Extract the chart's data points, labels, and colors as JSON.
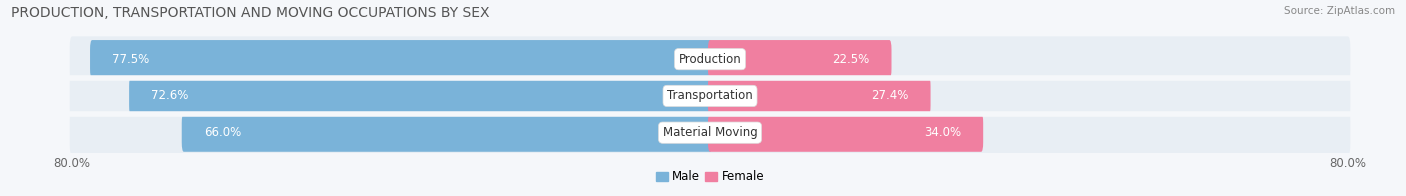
{
  "title": "PRODUCTION, TRANSPORTATION AND MOVING OCCUPATIONS BY SEX",
  "source": "Source: ZipAtlas.com",
  "categories": [
    "Production",
    "Transportation",
    "Material Moving"
  ],
  "male_values": [
    77.5,
    72.6,
    66.0
  ],
  "female_values": [
    22.5,
    27.4,
    34.0
  ],
  "male_color": "#7ab3d9",
  "male_bg_color": "#c5ddf0",
  "female_color": "#f07fa0",
  "female_bg_color": "#f5c0cf",
  "bar_bg_color": "#e8eef4",
  "background_color": "#f5f7fa",
  "title_color": "#555555",
  "axis_max": 80.0,
  "legend_male": "Male",
  "legend_female": "Female",
  "title_fontsize": 10,
  "label_fontsize": 8.5,
  "bar_label_fontsize": 8.5,
  "category_fontsize": 8.5,
  "source_fontsize": 7.5
}
